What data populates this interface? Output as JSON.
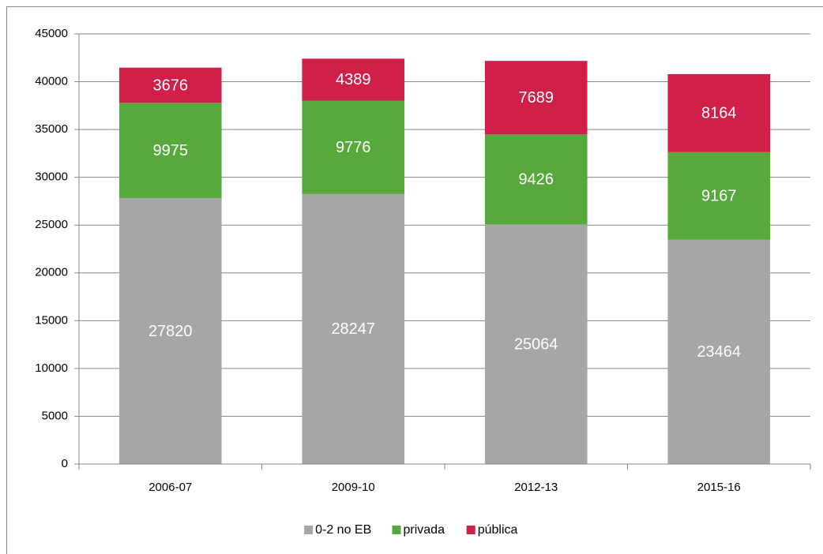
{
  "chart_data": {
    "type": "stacked_bar",
    "categories": [
      "2006-07",
      "2009-10",
      "2012-13",
      "2015-16"
    ],
    "series": [
      {
        "name": "0-2 no EB",
        "color": "#a6a6a6",
        "values": [
          27820,
          28247,
          25064,
          23464
        ]
      },
      {
        "name": "privada",
        "color": "#57a83d",
        "values": [
          9975,
          9776,
          9426,
          9167
        ]
      },
      {
        "name": "pública",
        "color": "#d01f48",
        "values": [
          3676,
          4389,
          7689,
          8164
        ]
      }
    ],
    "ylim": [
      0,
      45000
    ],
    "yticks": [
      0,
      5000,
      10000,
      15000,
      20000,
      25000,
      30000,
      35000,
      40000,
      45000
    ],
    "grid": true
  }
}
